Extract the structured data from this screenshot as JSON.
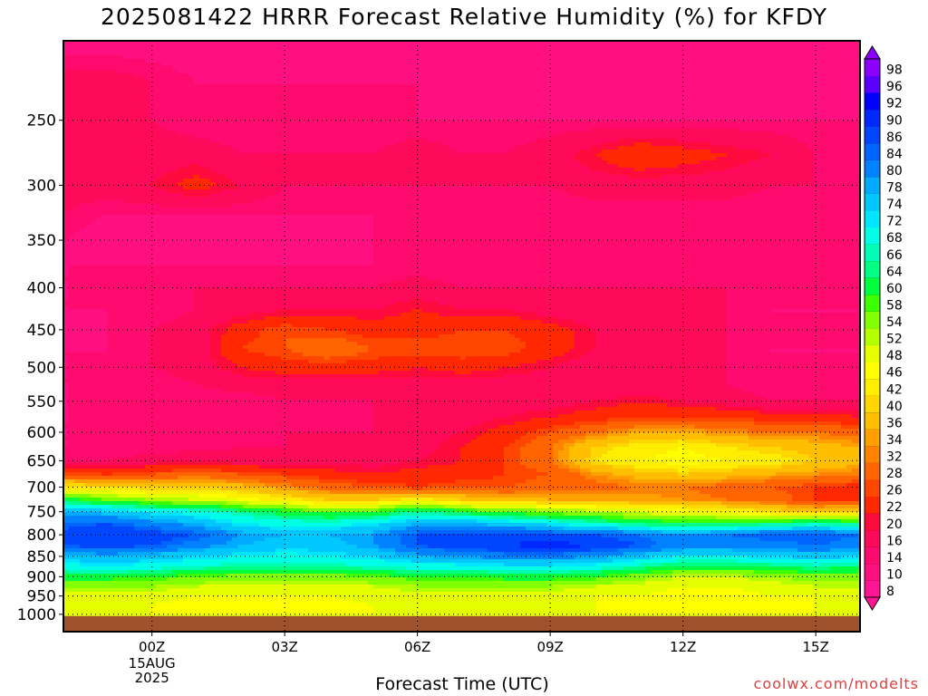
{
  "title": "2025081422 HRRR Forecast Relative Humidity (%) for KFDY",
  "credit": "coolwx.com/modelts",
  "chart_data": {
    "type": "heatmap",
    "title": "2025081422 HRRR Forecast Relative Humidity (%) for KFDY",
    "xlabel": "Forecast Time (UTC)",
    "ylabel": "",
    "x_ticks": [
      "00Z",
      "03Z",
      "06Z",
      "09Z",
      "12Z",
      "15Z"
    ],
    "x_tick_hours": [
      2,
      5,
      8,
      11,
      14,
      17
    ],
    "x_range_hours": [
      0,
      18
    ],
    "date_label": [
      "15AUG",
      "2025"
    ],
    "y_scale": "log-pressure",
    "y_range_hpa": [
      1050,
      200
    ],
    "y_ticks": [
      250,
      300,
      350,
      400,
      450,
      500,
      550,
      600,
      650,
      700,
      750,
      800,
      850,
      900,
      950,
      1000
    ],
    "ground_level_hpa": 1005,
    "ground_color": "#a0522d",
    "grid": true,
    "colorbar": {
      "placement": "right",
      "levels": [
        8,
        10,
        14,
        16,
        20,
        22,
        26,
        28,
        32,
        34,
        36,
        40,
        42,
        46,
        48,
        52,
        54,
        58,
        60,
        64,
        66,
        68,
        72,
        74,
        78,
        80,
        84,
        86,
        90,
        92,
        96,
        98
      ],
      "colors": [
        "#ff1493",
        "#ff0f80",
        "#ff0a6e",
        "#ff0a5a",
        "#ff0a3c",
        "#ff2800",
        "#ff4600",
        "#ff6400",
        "#ff8200",
        "#ffa000",
        "#ffbe00",
        "#ffd700",
        "#ffee00",
        "#ffff00",
        "#e6ff00",
        "#b4ff00",
        "#82ff00",
        "#3cff00",
        "#00ff3c",
        "#00ff82",
        "#00ffb4",
        "#00ffe6",
        "#00e6ff",
        "#00c8ff",
        "#00aaff",
        "#0082ff",
        "#0064ff",
        "#0046ff",
        "#0028ff",
        "#0000ff",
        "#5a00ff",
        "#8c00ff"
      ]
    },
    "x": [
      0,
      1,
      2,
      3,
      4,
      5,
      6,
      7,
      8,
      9,
      10,
      11,
      12,
      13,
      14,
      15,
      16,
      17,
      18
    ],
    "levels_hpa": [
      200,
      225,
      250,
      275,
      300,
      325,
      350,
      375,
      400,
      425,
      450,
      475,
      500,
      525,
      550,
      575,
      600,
      625,
      650,
      675,
      700,
      725,
      750,
      775,
      800,
      825,
      850,
      875,
      900,
      925,
      950,
      975,
      1000
    ],
    "values": [
      [
        12,
        12,
        12,
        12,
        12,
        12,
        12,
        12,
        12,
        12,
        12,
        12,
        12,
        12,
        12,
        12,
        12,
        12,
        12
      ],
      [
        18,
        18,
        16,
        14,
        14,
        14,
        14,
        14,
        14,
        12,
        12,
        12,
        12,
        12,
        12,
        12,
        12,
        12,
        12
      ],
      [
        20,
        18,
        16,
        14,
        14,
        14,
        14,
        14,
        14,
        14,
        14,
        14,
        14,
        14,
        14,
        14,
        14,
        14,
        14
      ],
      [
        20,
        18,
        18,
        18,
        16,
        16,
        16,
        16,
        18,
        16,
        16,
        18,
        22,
        26,
        24,
        22,
        20,
        16,
        14
      ],
      [
        18,
        18,
        20,
        24,
        20,
        16,
        16,
        16,
        16,
        16,
        16,
        16,
        18,
        18,
        18,
        18,
        16,
        16,
        14
      ],
      [
        16,
        14,
        14,
        14,
        14,
        14,
        14,
        14,
        14,
        14,
        14,
        14,
        14,
        14,
        14,
        14,
        14,
        14,
        14
      ],
      [
        14,
        12,
        12,
        12,
        12,
        12,
        12,
        14,
        14,
        14,
        14,
        14,
        14,
        14,
        14,
        14,
        14,
        14,
        14
      ],
      [
        14,
        14,
        14,
        14,
        14,
        14,
        14,
        14,
        14,
        14,
        14,
        14,
        14,
        14,
        14,
        14,
        14,
        14,
        14
      ],
      [
        14,
        14,
        14,
        16,
        16,
        16,
        16,
        16,
        18,
        16,
        16,
        16,
        16,
        16,
        16,
        16,
        14,
        14,
        14
      ],
      [
        14,
        14,
        14,
        16,
        18,
        20,
        20,
        20,
        22,
        20,
        20,
        18,
        16,
        16,
        16,
        16,
        14,
        14,
        14
      ],
      [
        12,
        14,
        16,
        18,
        24,
        28,
        26,
        24,
        24,
        26,
        26,
        24,
        20,
        16,
        16,
        16,
        14,
        14,
        14
      ],
      [
        14,
        14,
        16,
        18,
        26,
        28,
        32,
        28,
        28,
        28,
        28,
        24,
        20,
        18,
        16,
        16,
        14,
        14,
        14
      ],
      [
        14,
        14,
        16,
        18,
        22,
        24,
        24,
        24,
        22,
        24,
        22,
        20,
        18,
        16,
        16,
        16,
        14,
        14,
        14
      ],
      [
        14,
        14,
        14,
        16,
        18,
        18,
        18,
        18,
        18,
        18,
        18,
        18,
        16,
        16,
        16,
        16,
        14,
        14,
        14
      ],
      [
        14,
        14,
        14,
        14,
        14,
        16,
        16,
        16,
        16,
        16,
        18,
        18,
        20,
        22,
        20,
        18,
        16,
        16,
        16
      ],
      [
        14,
        14,
        14,
        14,
        14,
        14,
        14,
        16,
        16,
        18,
        20,
        22,
        24,
        26,
        26,
        26,
        24,
        24,
        22
      ],
      [
        14,
        14,
        14,
        14,
        14,
        16,
        16,
        16,
        18,
        20,
        24,
        28,
        32,
        36,
        36,
        34,
        32,
        32,
        30
      ],
      [
        14,
        14,
        14,
        14,
        16,
        16,
        16,
        18,
        18,
        22,
        26,
        32,
        40,
        44,
        46,
        42,
        40,
        38,
        36
      ],
      [
        16,
        16,
        18,
        20,
        18,
        18,
        18,
        18,
        20,
        22,
        26,
        32,
        42,
        46,
        48,
        46,
        44,
        40,
        38
      ],
      [
        28,
        26,
        28,
        30,
        28,
        26,
        24,
        22,
        24,
        24,
        26,
        28,
        34,
        38,
        40,
        38,
        36,
        34,
        32
      ],
      [
        44,
        42,
        40,
        40,
        38,
        34,
        30,
        28,
        26,
        28,
        28,
        30,
        30,
        32,
        32,
        30,
        28,
        26,
        24
      ],
      [
        62,
        58,
        54,
        52,
        48,
        44,
        40,
        40,
        44,
        40,
        38,
        36,
        36,
        36,
        34,
        32,
        30,
        26,
        24
      ],
      [
        78,
        76,
        72,
        70,
        66,
        62,
        58,
        60,
        66,
        62,
        58,
        56,
        54,
        50,
        48,
        46,
        42,
        40,
        42
      ],
      [
        84,
        86,
        82,
        78,
        72,
        70,
        70,
        72,
        78,
        78,
        76,
        72,
        68,
        64,
        62,
        62,
        64,
        66,
        64
      ],
      [
        88,
        90,
        88,
        86,
        80,
        78,
        78,
        80,
        86,
        88,
        88,
        88,
        86,
        84,
        82,
        84,
        86,
        86,
        84
      ],
      [
        86,
        88,
        86,
        82,
        78,
        76,
        76,
        80,
        86,
        88,
        90,
        92,
        90,
        86,
        82,
        82,
        82,
        84,
        82
      ],
      [
        76,
        78,
        76,
        74,
        72,
        70,
        72,
        74,
        78,
        80,
        82,
        82,
        80,
        76,
        72,
        72,
        74,
        76,
        74
      ],
      [
        70,
        72,
        70,
        68,
        66,
        66,
        66,
        68,
        70,
        70,
        72,
        72,
        70,
        66,
        62,
        62,
        64,
        66,
        64
      ],
      [
        62,
        62,
        60,
        58,
        56,
        56,
        56,
        58,
        60,
        60,
        62,
        62,
        60,
        56,
        52,
        52,
        54,
        56,
        56
      ],
      [
        54,
        54,
        54,
        52,
        50,
        50,
        50,
        52,
        54,
        54,
        54,
        54,
        52,
        50,
        48,
        48,
        50,
        52,
        52
      ],
      [
        50,
        50,
        50,
        48,
        48,
        48,
        48,
        50,
        50,
        50,
        50,
        50,
        48,
        48,
        46,
        46,
        48,
        48,
        48
      ],
      [
        48,
        48,
        48,
        46,
        46,
        46,
        46,
        48,
        48,
        48,
        48,
        48,
        48,
        46,
        46,
        46,
        46,
        48,
        48
      ],
      [
        48,
        48,
        48,
        48,
        48,
        48,
        48,
        48,
        48,
        48,
        48,
        48,
        48,
        48,
        48,
        48,
        48,
        48,
        48
      ]
    ]
  }
}
